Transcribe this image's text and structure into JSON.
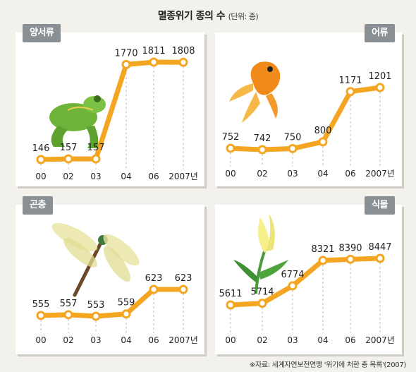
{
  "title": "멸종위기 종의 수",
  "unit_note": "(단위: 종)",
  "source": "※자료: 세계자연보전연맹 '위기에 처한 종 목록'(2007)",
  "colors": {
    "line": "#f4a623",
    "marker_fill": "#ffffff",
    "badge": "#8a8f93",
    "panel": "#ffffff",
    "background": "#f2f1ec"
  },
  "chart_data": [
    {
      "type": "line",
      "title": "양서류",
      "categories": [
        "00",
        "02",
        "03",
        "04",
        "06",
        "2007년"
      ],
      "values": [
        146,
        157,
        157,
        1770,
        1811,
        1808
      ],
      "illustration": "frog"
    },
    {
      "type": "line",
      "title": "어류",
      "categories": [
        "00",
        "02",
        "03",
        "04",
        "06",
        "2007년"
      ],
      "values": [
        752,
        742,
        750,
        800,
        1171,
        1201
      ],
      "illustration": "goldfish"
    },
    {
      "type": "line",
      "title": "곤충",
      "categories": [
        "00",
        "02",
        "03",
        "04",
        "06",
        "2007년"
      ],
      "values": [
        555,
        557,
        553,
        559,
        623,
        623
      ],
      "illustration": "dragonfly"
    },
    {
      "type": "line",
      "title": "식물",
      "categories": [
        "00",
        "02",
        "03",
        "04",
        "06",
        "2007년"
      ],
      "values": [
        5611,
        5714,
        6774,
        8321,
        8390,
        8447
      ],
      "illustration": "lily"
    }
  ]
}
